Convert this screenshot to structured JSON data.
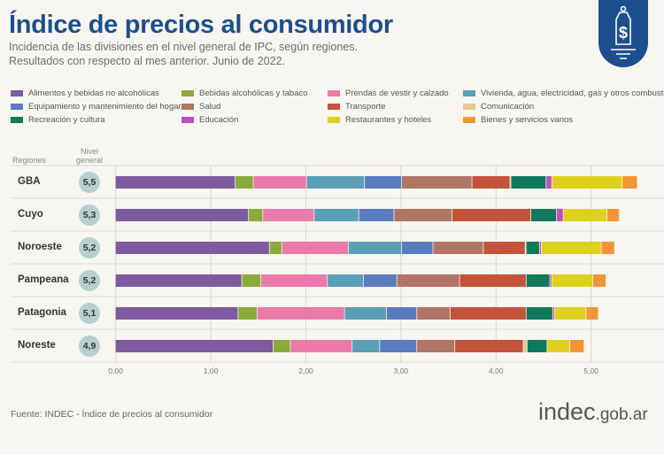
{
  "header": {
    "title": "Índice de precios al consumidor",
    "subtitle1": "Incidencia de las divisiones en el nivel general de IPC, según regiones.",
    "subtitle2": "Resultados con respecto al mes anterior. Junio de 2022."
  },
  "badge_icon": "price-tag-dollar-icon",
  "columns": {
    "regions": "Regiones",
    "general": "Nivel general"
  },
  "footer": {
    "source": "Fuente: INDEC - Índice de precios al consumidor",
    "logo": "indec",
    "logo_suffix": ".gob.ar"
  },
  "chart_data": {
    "type": "bar",
    "orientation": "horizontal",
    "stacked": true,
    "title": "Índice de precios al consumidor",
    "xlim": [
      0,
      5.6
    ],
    "xticks": [
      "0,00",
      "1,00",
      "2,00",
      "3,00",
      "4,00",
      "5,00"
    ],
    "grid": true,
    "legend_placement": "top",
    "categories": [
      "GBA",
      "Cuyo",
      "Noroeste",
      "Pampeana",
      "Patagonia",
      "Noreste"
    ],
    "nivel_general": [
      "5,5",
      "5,3",
      "5,2",
      "5,2",
      "5,1",
      "4,9"
    ],
    "series": [
      {
        "name": "Alimentos y bebidas no alcohólicas",
        "color": "#7e5a9e",
        "values": [
          1.26,
          1.4,
          1.62,
          1.33,
          1.29,
          1.66
        ]
      },
      {
        "name": "Bebidas alcohólicas y tabaco",
        "color": "#8aaa3c",
        "values": [
          0.19,
          0.15,
          0.13,
          0.2,
          0.2,
          0.18
        ]
      },
      {
        "name": "Prendas de vestir y calzado",
        "color": "#ea7aaa",
        "values": [
          0.56,
          0.54,
          0.7,
          0.7,
          0.92,
          0.65
        ]
      },
      {
        "name": "Vivienda, agua, electricidad, gas y otros combustibles",
        "color": "#5a9fb5",
        "values": [
          0.61,
          0.47,
          0.56,
          0.38,
          0.44,
          0.29
        ]
      },
      {
        "name": "Equipamiento y mantenimiento del hogar",
        "color": "#5a7bbf",
        "values": [
          0.39,
          0.37,
          0.33,
          0.35,
          0.32,
          0.39
        ]
      },
      {
        "name": "Salud",
        "color": "#b07565",
        "values": [
          0.74,
          0.61,
          0.53,
          0.66,
          0.35,
          0.4
        ]
      },
      {
        "name": "Transporte",
        "color": "#c4533b",
        "values": [
          0.4,
          0.83,
          0.44,
          0.7,
          0.8,
          0.72
        ]
      },
      {
        "name": "Comunicación",
        "color": "#e8c98a",
        "values": [
          0.01,
          0.0,
          0.01,
          0.0,
          0.0,
          0.04
        ]
      },
      {
        "name": "Recreación y cultura",
        "color": "#0e7a5a",
        "values": [
          0.37,
          0.27,
          0.14,
          0.25,
          0.28,
          0.21
        ]
      },
      {
        "name": "Educación",
        "color": "#c04ec0",
        "values": [
          0.06,
          0.07,
          0.02,
          0.02,
          0.02,
          0.0
        ]
      },
      {
        "name": "Restaurantes y hoteles",
        "color": "#dcd21e",
        "values": [
          0.74,
          0.46,
          0.63,
          0.43,
          0.33,
          0.24
        ]
      },
      {
        "name": "Bienes y servicios varios",
        "color": "#f39536",
        "values": [
          0.16,
          0.13,
          0.14,
          0.14,
          0.13,
          0.15
        ]
      }
    ]
  }
}
